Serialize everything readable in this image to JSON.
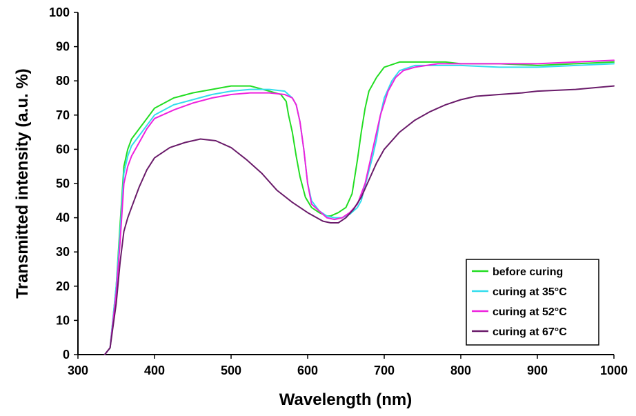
{
  "chart_data": {
    "type": "line",
    "title": "",
    "xlabel": "Wavelength (nm)",
    "ylabel": "Transmitted intensity (a.u. %)",
    "xlim": [
      300,
      1000
    ],
    "ylim": [
      0,
      100
    ],
    "xticks": [
      "300",
      "400",
      "500",
      "600",
      "700",
      "800",
      "900",
      "1000"
    ],
    "yticks": [
      "0",
      "10",
      "20",
      "30",
      "40",
      "50",
      "60",
      "70",
      "80",
      "90",
      "100"
    ],
    "grid": false,
    "legend": "bottom-right",
    "series": [
      {
        "name": "before curing",
        "color": "#22dd22",
        "points": [
          [
            335,
            0
          ],
          [
            342,
            2
          ],
          [
            350,
            20
          ],
          [
            355,
            38
          ],
          [
            360,
            55
          ],
          [
            365,
            60
          ],
          [
            370,
            63
          ],
          [
            380,
            66
          ],
          [
            390,
            69
          ],
          [
            400,
            72
          ],
          [
            425,
            75
          ],
          [
            450,
            76.5
          ],
          [
            475,
            77.5
          ],
          [
            500,
            78.5
          ],
          [
            525,
            78.5
          ],
          [
            550,
            77
          ],
          [
            565,
            76
          ],
          [
            572,
            74
          ],
          [
            575,
            70
          ],
          [
            580,
            65
          ],
          [
            585,
            58
          ],
          [
            590,
            52
          ],
          [
            597,
            46
          ],
          [
            605,
            43
          ],
          [
            615,
            41.5
          ],
          [
            625,
            40.5
          ],
          [
            630,
            40.5
          ],
          [
            640,
            41.5
          ],
          [
            650,
            43
          ],
          [
            658,
            47
          ],
          [
            665,
            57
          ],
          [
            670,
            65
          ],
          [
            675,
            72
          ],
          [
            680,
            77
          ],
          [
            690,
            81
          ],
          [
            700,
            84
          ],
          [
            720,
            85.5
          ],
          [
            750,
            85.5
          ],
          [
            780,
            85.5
          ],
          [
            800,
            85
          ],
          [
            850,
            85
          ],
          [
            900,
            84.5
          ],
          [
            950,
            85
          ],
          [
            1000,
            85.5
          ]
        ]
      },
      {
        "name": "curing at 35°C",
        "color": "#33ddee",
        "points": [
          [
            335,
            0
          ],
          [
            342,
            2
          ],
          [
            350,
            20
          ],
          [
            355,
            36
          ],
          [
            360,
            53
          ],
          [
            365,
            58
          ],
          [
            370,
            61
          ],
          [
            380,
            64
          ],
          [
            390,
            67
          ],
          [
            400,
            70
          ],
          [
            425,
            73
          ],
          [
            450,
            74.5
          ],
          [
            475,
            76
          ],
          [
            500,
            77
          ],
          [
            525,
            77.5
          ],
          [
            550,
            77.5
          ],
          [
            570,
            77
          ],
          [
            580,
            75
          ],
          [
            585,
            73
          ],
          [
            590,
            68
          ],
          [
            595,
            60
          ],
          [
            600,
            50
          ],
          [
            605,
            45
          ],
          [
            615,
            42
          ],
          [
            625,
            40.5
          ],
          [
            635,
            40
          ],
          [
            645,
            40
          ],
          [
            655,
            41
          ],
          [
            665,
            43
          ],
          [
            670,
            45
          ],
          [
            678,
            52
          ],
          [
            685,
            58
          ],
          [
            690,
            63
          ],
          [
            695,
            70
          ],
          [
            700,
            75
          ],
          [
            710,
            80
          ],
          [
            720,
            83
          ],
          [
            740,
            84.5
          ],
          [
            770,
            84.5
          ],
          [
            800,
            84.5
          ],
          [
            850,
            84
          ],
          [
            900,
            84
          ],
          [
            950,
            84.5
          ],
          [
            1000,
            85
          ]
        ]
      },
      {
        "name": "curing at 52°C",
        "color": "#ee22dd",
        "points": [
          [
            335,
            0
          ],
          [
            342,
            2
          ],
          [
            350,
            18
          ],
          [
            355,
            33
          ],
          [
            360,
            50
          ],
          [
            365,
            55
          ],
          [
            370,
            58
          ],
          [
            380,
            62
          ],
          [
            390,
            66
          ],
          [
            400,
            69
          ],
          [
            425,
            71.5
          ],
          [
            450,
            73.5
          ],
          [
            475,
            75
          ],
          [
            500,
            76
          ],
          [
            525,
            76.5
          ],
          [
            550,
            76.5
          ],
          [
            570,
            76
          ],
          [
            580,
            75
          ],
          [
            585,
            73
          ],
          [
            590,
            68
          ],
          [
            595,
            60
          ],
          [
            600,
            50
          ],
          [
            605,
            44
          ],
          [
            615,
            42
          ],
          [
            625,
            40
          ],
          [
            635,
            39.5
          ],
          [
            645,
            40
          ],
          [
            655,
            41.5
          ],
          [
            665,
            44
          ],
          [
            675,
            50
          ],
          [
            685,
            60
          ],
          [
            695,
            70
          ],
          [
            705,
            77
          ],
          [
            715,
            81
          ],
          [
            725,
            83
          ],
          [
            740,
            84
          ],
          [
            770,
            85
          ],
          [
            800,
            85
          ],
          [
            850,
            85
          ],
          [
            900,
            85
          ],
          [
            950,
            85.5
          ],
          [
            1000,
            86
          ]
        ]
      },
      {
        "name": "curing at 67°C",
        "color": "#6a1b6a",
        "points": [
          [
            335,
            0
          ],
          [
            342,
            2
          ],
          [
            350,
            15
          ],
          [
            355,
            27
          ],
          [
            360,
            36
          ],
          [
            365,
            40
          ],
          [
            370,
            43
          ],
          [
            380,
            49
          ],
          [
            390,
            54
          ],
          [
            400,
            57.5
          ],
          [
            420,
            60.5
          ],
          [
            440,
            62
          ],
          [
            460,
            63
          ],
          [
            480,
            62.5
          ],
          [
            500,
            60.5
          ],
          [
            520,
            57
          ],
          [
            540,
            53
          ],
          [
            560,
            48
          ],
          [
            580,
            44.5
          ],
          [
            600,
            41.5
          ],
          [
            620,
            39
          ],
          [
            630,
            38.5
          ],
          [
            640,
            38.5
          ],
          [
            650,
            40
          ],
          [
            660,
            42.5
          ],
          [
            670,
            46
          ],
          [
            680,
            51
          ],
          [
            690,
            56
          ],
          [
            700,
            60
          ],
          [
            720,
            65
          ],
          [
            740,
            68.5
          ],
          [
            760,
            71
          ],
          [
            780,
            73
          ],
          [
            800,
            74.5
          ],
          [
            820,
            75.5
          ],
          [
            850,
            76
          ],
          [
            880,
            76.5
          ],
          [
            900,
            77
          ],
          [
            950,
            77.5
          ],
          [
            1000,
            78.5
          ]
        ]
      }
    ]
  }
}
